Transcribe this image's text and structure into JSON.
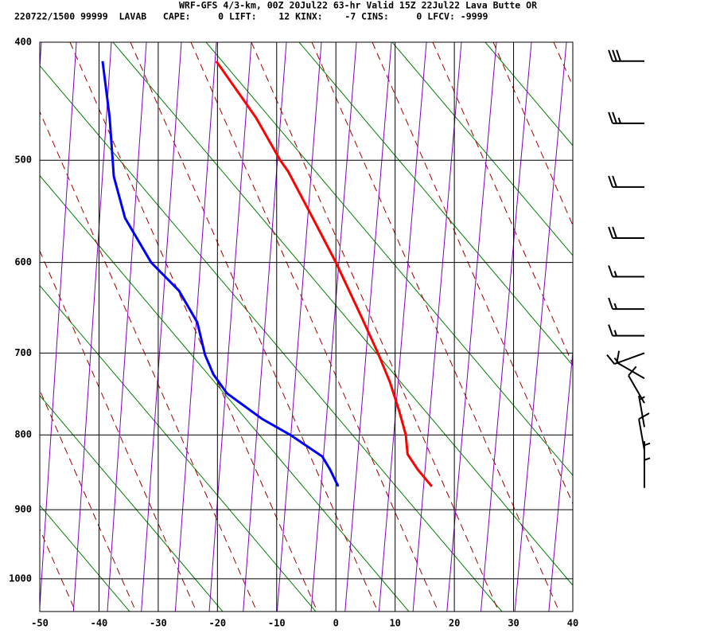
{
  "chart_data": {
    "type": "skewt",
    "title": "WRF-GFS 4/3-km, 00Z 20Jul22 63-hr Valid 15Z 22Jul22 Lava Butte OR",
    "subtitle": "220722/1500 99999  LAVAB   CAPE:     0 LIFT:    12 KINX:    -7 CINS:     0 LFCV: -9999",
    "xlim": [
      -50,
      40
    ],
    "xticks": [
      -50,
      -40,
      -30,
      -20,
      -10,
      0,
      10,
      20,
      30,
      40
    ],
    "ylim": [
      1050,
      400
    ],
    "yticks": [
      400,
      500,
      600,
      700,
      800,
      900,
      1000
    ],
    "y_power": 0.286,
    "grid": true,
    "profiles": [
      {
        "color": "#ff0000",
        "pressure": [
          415,
          462,
          500,
          510,
          555,
          600,
          660,
          700,
          734,
          770,
          800,
          825,
          845,
          868
        ],
        "temperature": [
          -20.2,
          -13.5,
          -9.4,
          -8.1,
          -3.9,
          0.0,
          4.4,
          7.1,
          9.1,
          10.7,
          11.8,
          12.1,
          13.8,
          16.2
        ]
      },
      {
        "color": "#0000ff",
        "pressure": [
          415,
          462,
          515,
          555,
          600,
          630,
          665,
          702,
          725,
          748,
          780,
          800,
          828,
          845,
          868
        ],
        "temperature": [
          -39.4,
          -38.2,
          -37.5,
          -35.6,
          -31.2,
          -26.5,
          -23.4,
          -22.1,
          -20.7,
          -18.4,
          -12.4,
          -7.7,
          -2.3,
          -1.0,
          0.4
        ]
      }
    ],
    "winds": {
      "pressure": [
        415,
        467,
        525,
        575,
        615,
        650,
        680,
        700,
        730,
        760,
        790,
        820,
        850,
        870
      ],
      "direction": [
        270,
        270,
        270,
        270,
        270,
        270,
        270,
        250,
        300,
        330,
        350,
        350,
        0,
        0
      ],
      "speed": [
        30,
        25,
        20,
        20,
        15,
        15,
        15,
        15,
        10,
        10,
        5,
        10,
        5,
        5
      ]
    }
  }
}
